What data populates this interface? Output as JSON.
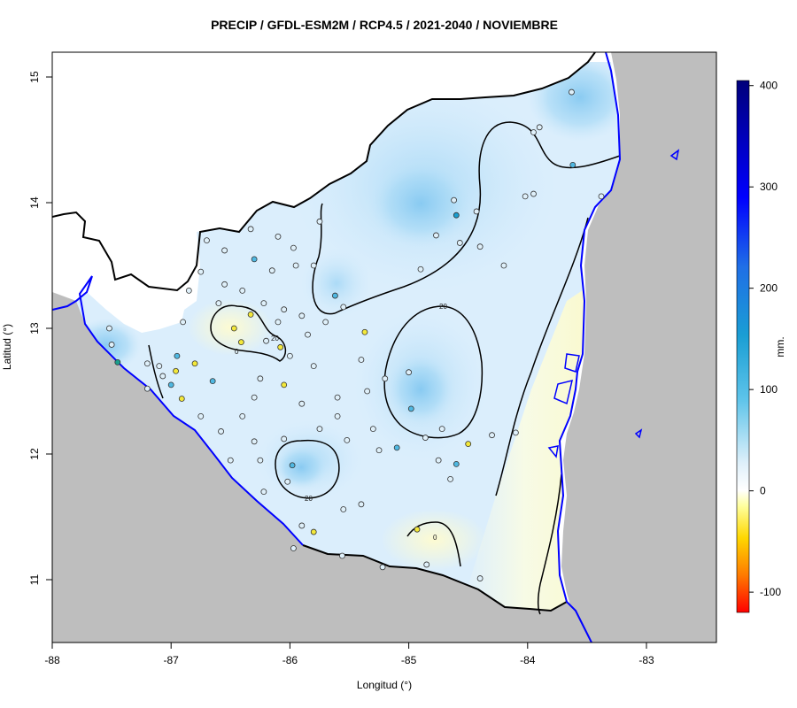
{
  "title": "PRECIP / GFDL-ESM2M / RCP4.5 / 2021-2040 / NOVIEMBRE",
  "x_axis": {
    "label": "Longitud (°)",
    "ticks": [
      "-88",
      "-87",
      "-86",
      "-85",
      "-84",
      "-83"
    ]
  },
  "y_axis": {
    "label": "Latitud (°)",
    "ticks": [
      "11",
      "12",
      "13",
      "14",
      "15"
    ]
  },
  "colorbar": {
    "unit": "mm.",
    "ticks": [
      "400",
      "300",
      "200",
      "100",
      "0",
      "-100"
    ],
    "range": [
      -120,
      405
    ]
  },
  "contour_labels": [
    "20",
    "20",
    "0",
    "0",
    "20"
  ],
  "colors": {
    "land_outside": "#bebebe",
    "coast": "#0000ff",
    "border": "#000000",
    "field_light": "#dbeefc",
    "field_mid": "#a9daf6",
    "positive_low": "#fefee0"
  },
  "stations": [
    {
      "lon": -86.33,
      "lat": 13.79,
      "color": "#dff0fa"
    },
    {
      "lon": -86.1,
      "lat": 13.73,
      "color": "#dff0fa"
    },
    {
      "lon": -85.97,
      "lat": 13.64,
      "color": "#dff0fa"
    },
    {
      "lon": -86.7,
      "lat": 13.7,
      "color": "#dff0fa"
    },
    {
      "lon": -86.55,
      "lat": 13.62,
      "color": "#dff0fa"
    },
    {
      "lon": -86.3,
      "lat": 13.55,
      "color": "#4fb8e2"
    },
    {
      "lon": -86.15,
      "lat": 13.46,
      "color": "#dff0fa"
    },
    {
      "lon": -85.95,
      "lat": 13.5,
      "color": "#dff0fa"
    },
    {
      "lon": -85.62,
      "lat": 13.26,
      "color": "#4fb8e2"
    },
    {
      "lon": -85.55,
      "lat": 13.17,
      "color": "#dff0fa"
    },
    {
      "lon": -86.55,
      "lat": 13.35,
      "color": "#dff0fa"
    },
    {
      "lon": -86.4,
      "lat": 13.3,
      "color": "#dff0fa"
    },
    {
      "lon": -86.22,
      "lat": 13.2,
      "color": "#dff0fa"
    },
    {
      "lon": -86.05,
      "lat": 13.15,
      "color": "#dff0fa"
    },
    {
      "lon": -85.9,
      "lat": 13.1,
      "color": "#dff0fa"
    },
    {
      "lon": -85.7,
      "lat": 13.05,
      "color": "#dff0fa"
    },
    {
      "lon": -86.47,
      "lat": 13.0,
      "color": "#f3e83a"
    },
    {
      "lon": -86.33,
      "lat": 13.11,
      "color": "#f3e83a"
    },
    {
      "lon": -86.41,
      "lat": 12.89,
      "color": "#f3e83a"
    },
    {
      "lon": -86.08,
      "lat": 12.85,
      "color": "#f3e83a"
    },
    {
      "lon": -85.37,
      "lat": 12.97,
      "color": "#f3e83a"
    },
    {
      "lon": -86.2,
      "lat": 12.9,
      "color": "#dff0fa"
    },
    {
      "lon": -86.0,
      "lat": 12.78,
      "color": "#dff0fa"
    },
    {
      "lon": -85.8,
      "lat": 12.7,
      "color": "#dff0fa"
    },
    {
      "lon": -86.65,
      "lat": 12.58,
      "color": "#4fb8e2"
    },
    {
      "lon": -86.95,
      "lat": 12.78,
      "color": "#4fb8e2"
    },
    {
      "lon": -86.8,
      "lat": 12.72,
      "color": "#f3e83a"
    },
    {
      "lon": -86.96,
      "lat": 12.66,
      "color": "#f3e83a"
    },
    {
      "lon": -87.1,
      "lat": 12.7,
      "color": "#dff0fa"
    },
    {
      "lon": -87.0,
      "lat": 12.55,
      "color": "#4fb8e2"
    },
    {
      "lon": -86.91,
      "lat": 12.44,
      "color": "#f3e83a"
    },
    {
      "lon": -86.05,
      "lat": 12.55,
      "color": "#f3e83a"
    },
    {
      "lon": -86.3,
      "lat": 12.45,
      "color": "#dff0fa"
    },
    {
      "lon": -85.9,
      "lat": 12.4,
      "color": "#dff0fa"
    },
    {
      "lon": -85.6,
      "lat": 12.45,
      "color": "#dff0fa"
    },
    {
      "lon": -85.35,
      "lat": 12.5,
      "color": "#dff0fa"
    },
    {
      "lon": -84.98,
      "lat": 12.36,
      "color": "#4fb8e2"
    },
    {
      "lon": -84.86,
      "lat": 12.13,
      "color": "#dff0fa"
    },
    {
      "lon": -85.1,
      "lat": 12.05,
      "color": "#4fb8e2"
    },
    {
      "lon": -85.3,
      "lat": 12.2,
      "color": "#dff0fa"
    },
    {
      "lon": -84.6,
      "lat": 11.92,
      "color": "#4fb8e2"
    },
    {
      "lon": -84.5,
      "lat": 12.08,
      "color": "#f3e83a"
    },
    {
      "lon": -84.3,
      "lat": 12.15,
      "color": "#dff0fa"
    },
    {
      "lon": -84.1,
      "lat": 12.17,
      "color": "#dff0fa"
    },
    {
      "lon": -85.98,
      "lat": 11.91,
      "color": "#4fb8e2"
    },
    {
      "lon": -86.05,
      "lat": 12.12,
      "color": "#dff0fa"
    },
    {
      "lon": -86.3,
      "lat": 12.1,
      "color": "#dff0fa"
    },
    {
      "lon": -86.25,
      "lat": 11.95,
      "color": "#dff0fa"
    },
    {
      "lon": -86.5,
      "lat": 11.95,
      "color": "#dff0fa"
    },
    {
      "lon": -86.02,
      "lat": 11.78,
      "color": "#dff0fa"
    },
    {
      "lon": -86.22,
      "lat": 11.7,
      "color": "#dff0fa"
    },
    {
      "lon": -85.55,
      "lat": 11.56,
      "color": "#dff0fa"
    },
    {
      "lon": -85.4,
      "lat": 11.6,
      "color": "#dff0fa"
    },
    {
      "lon": -85.9,
      "lat": 11.43,
      "color": "#dff0fa"
    },
    {
      "lon": -85.8,
      "lat": 11.38,
      "color": "#f3e83a"
    },
    {
      "lon": -85.97,
      "lat": 11.25,
      "color": "#dff0fa"
    },
    {
      "lon": -84.93,
      "lat": 11.4,
      "color": "#f3e83a"
    },
    {
      "lon": -84.85,
      "lat": 11.12,
      "color": "#dff0fa"
    },
    {
      "lon": -84.4,
      "lat": 11.01,
      "color": "#dff0fa"
    },
    {
      "lon": -85.56,
      "lat": 11.19,
      "color": "#dff0fa"
    },
    {
      "lon": -85.22,
      "lat": 11.1,
      "color": "#dff0fa"
    },
    {
      "lon": -84.62,
      "lat": 14.02,
      "color": "#dff0fa"
    },
    {
      "lon": -84.6,
      "lat": 13.9,
      "color": "#199ed0"
    },
    {
      "lon": -84.43,
      "lat": 13.93,
      "color": "#dff0fa"
    },
    {
      "lon": -84.77,
      "lat": 13.74,
      "color": "#dff0fa"
    },
    {
      "lon": -84.57,
      "lat": 13.68,
      "color": "#dff0fa"
    },
    {
      "lon": -84.4,
      "lat": 13.65,
      "color": "#dff0fa"
    },
    {
      "lon": -84.2,
      "lat": 13.5,
      "color": "#dff0fa"
    },
    {
      "lon": -84.9,
      "lat": 13.47,
      "color": "#dff0fa"
    },
    {
      "lon": -84.02,
      "lat": 14.05,
      "color": "#dff0fa"
    },
    {
      "lon": -83.95,
      "lat": 14.07,
      "color": "#dff0fa"
    },
    {
      "lon": -83.95,
      "lat": 14.56,
      "color": "#dff0fa"
    },
    {
      "lon": -83.9,
      "lat": 14.6,
      "color": "#dff0fa"
    },
    {
      "lon": -83.62,
      "lat": 14.3,
      "color": "#4fb8e2"
    },
    {
      "lon": -83.38,
      "lat": 14.05,
      "color": "#dff0fa"
    },
    {
      "lon": -83.63,
      "lat": 14.88,
      "color": "#dff0fa"
    },
    {
      "lon": -87.52,
      "lat": 13.0,
      "color": "#dff0fa"
    },
    {
      "lon": -87.5,
      "lat": 12.87,
      "color": "#dff0fa"
    },
    {
      "lon": -87.45,
      "lat": 12.73,
      "color": "#1b9e8e"
    },
    {
      "lon": -87.2,
      "lat": 12.72,
      "color": "#dff0fa"
    },
    {
      "lon": -87.07,
      "lat": 12.62,
      "color": "#dff0fa"
    },
    {
      "lon": -87.2,
      "lat": 12.52,
      "color": "#dff0fa"
    },
    {
      "lon": -86.75,
      "lat": 12.3,
      "color": "#dff0fa"
    },
    {
      "lon": -86.58,
      "lat": 12.18,
      "color": "#dff0fa"
    },
    {
      "lon": -86.4,
      "lat": 12.3,
      "color": "#dff0fa"
    },
    {
      "lon": -86.25,
      "lat": 12.6,
      "color": "#dff0fa"
    },
    {
      "lon": -85.52,
      "lat": 12.11,
      "color": "#dff0fa"
    },
    {
      "lon": -85.75,
      "lat": 12.2,
      "color": "#dff0fa"
    },
    {
      "lon": -85.6,
      "lat": 12.3,
      "color": "#dff0fa"
    },
    {
      "lon": -85.25,
      "lat": 12.03,
      "color": "#dff0fa"
    },
    {
      "lon": -84.72,
      "lat": 12.2,
      "color": "#dff0fa"
    },
    {
      "lon": -84.75,
      "lat": 11.95,
      "color": "#dff0fa"
    },
    {
      "lon": -84.65,
      "lat": 11.8,
      "color": "#dff0fa"
    },
    {
      "lon": -85.0,
      "lat": 12.65,
      "color": "#dff0fa"
    },
    {
      "lon": -85.4,
      "lat": 12.75,
      "color": "#dff0fa"
    },
    {
      "lon": -85.2,
      "lat": 12.6,
      "color": "#dff0fa"
    },
    {
      "lon": -86.1,
      "lat": 13.05,
      "color": "#dff0fa"
    },
    {
      "lon": -85.85,
      "lat": 12.95,
      "color": "#dff0fa"
    },
    {
      "lon": -86.6,
      "lat": 13.2,
      "color": "#dff0fa"
    },
    {
      "lon": -86.75,
      "lat": 13.45,
      "color": "#dff0fa"
    },
    {
      "lon": -86.85,
      "lat": 13.3,
      "color": "#dff0fa"
    },
    {
      "lon": -86.9,
      "lat": 13.05,
      "color": "#dff0fa"
    },
    {
      "lon": -85.75,
      "lat": 13.85,
      "color": "#dff0fa"
    },
    {
      "lon": -85.8,
      "lat": 13.5,
      "color": "#dff0fa"
    }
  ]
}
